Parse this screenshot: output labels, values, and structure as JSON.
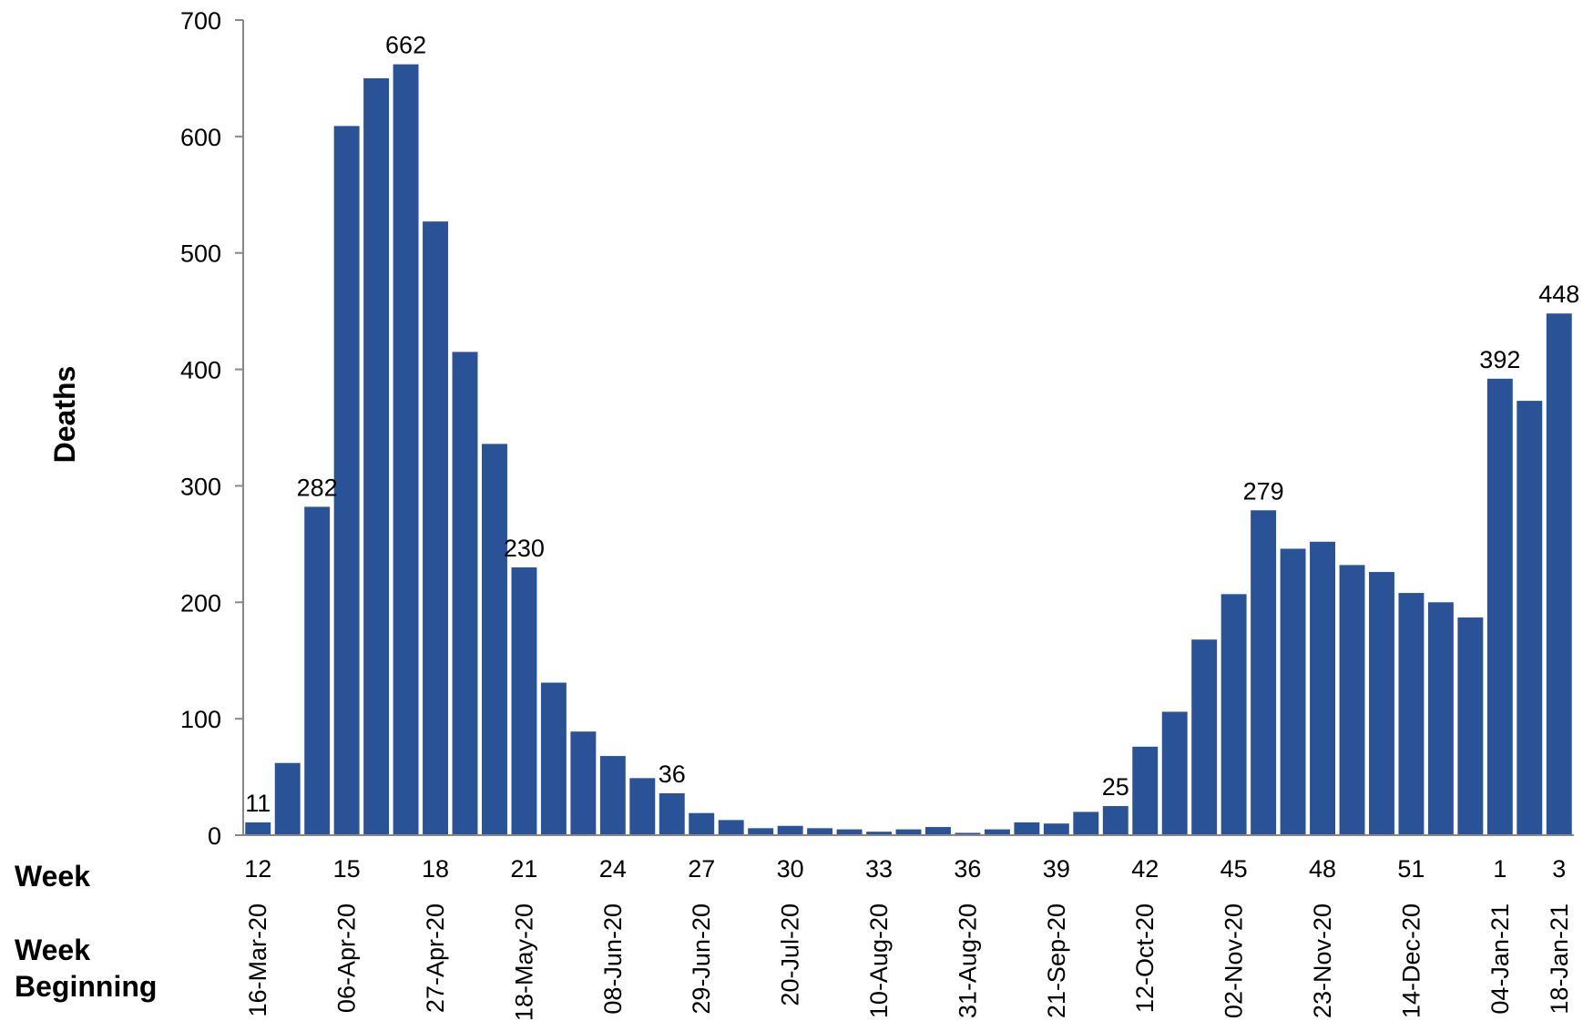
{
  "chart_data": {
    "type": "bar",
    "title": "",
    "ylabel": "Deaths",
    "xlabel": "",
    "ylim": [
      0,
      700
    ],
    "yticks": [
      0,
      100,
      200,
      300,
      400,
      500,
      600,
      700
    ],
    "grid": false,
    "bar_color": "#2A5297",
    "row_labels": {
      "week": "Week",
      "week_beginning": "Week Beginning"
    },
    "weeks": [
      "12",
      "13",
      "14",
      "15",
      "16",
      "17",
      "18",
      "19",
      "20",
      "21",
      "22",
      "23",
      "24",
      "25",
      "26",
      "27",
      "28",
      "29",
      "30",
      "31",
      "32",
      "33",
      "34",
      "35",
      "36",
      "37",
      "38",
      "39",
      "40",
      "41",
      "42",
      "43",
      "44",
      "45",
      "46",
      "47",
      "48",
      "49",
      "50",
      "51",
      "52",
      "53",
      "1",
      "2",
      "3"
    ],
    "week_ticks": [
      "12",
      "15",
      "18",
      "21",
      "24",
      "27",
      "30",
      "33",
      "36",
      "39",
      "42",
      "45",
      "48",
      "51",
      "1",
      "3"
    ],
    "week_beginning_ticks": [
      "16-Mar-20",
      "06-Apr-20",
      "27-Apr-20",
      "18-May-20",
      "08-Jun-20",
      "29-Jun-20",
      "20-Jul-20",
      "10-Aug-20",
      "31-Aug-20",
      "21-Sep-20",
      "12-Oct-20",
      "02-Nov-20",
      "23-Nov-20",
      "14-Dec-20",
      "04-Jan-21",
      "18-Jan-21"
    ],
    "values": [
      11,
      62,
      282,
      609,
      650,
      662,
      527,
      415,
      336,
      230,
      131,
      89,
      68,
      49,
      36,
      19,
      13,
      6,
      8,
      6,
      5,
      3,
      5,
      7,
      2,
      5,
      11,
      10,
      20,
      25,
      76,
      106,
      168,
      207,
      279,
      246,
      252,
      232,
      226,
      208,
      200,
      187,
      392,
      373,
      448
    ],
    "data_labels": {
      "12": "11",
      "14": "282",
      "17": "662",
      "21": "230",
      "26": "36",
      "41": "25",
      "46": "279",
      "1": "392",
      "3": "448"
    }
  }
}
